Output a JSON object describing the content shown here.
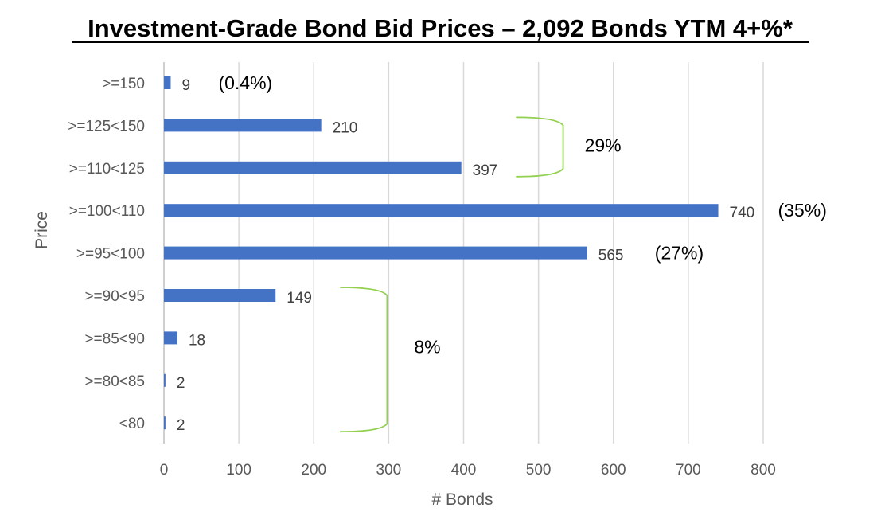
{
  "chart_data": {
    "type": "bar",
    "orientation": "horizontal",
    "title": "Investment-Grade Bond Bid Prices – 2,092 Bonds YTM 4+%*",
    "xlabel": "# Bonds",
    "ylabel": "Price",
    "xlim": [
      0,
      800
    ],
    "xticks": [
      "0",
      "100",
      "200",
      "300",
      "400",
      "500",
      "600",
      "700",
      "800"
    ],
    "categories": [
      ">=150",
      ">=125<150",
      ">=110<125",
      ">=100<110",
      ">=95<100",
      ">=90<95",
      ">=85<90",
      ">=80<85",
      "<80"
    ],
    "values": [
      9,
      210,
      397,
      740,
      565,
      149,
      18,
      2,
      2
    ],
    "value_labels": [
      "9",
      "210",
      "397",
      "740",
      "565",
      "149",
      "18",
      "2",
      "2"
    ],
    "grid": "vertical",
    "bar_color": "#4472c4",
    "annotations": [
      {
        "text": "(0.4%)",
        "category": ">=150"
      },
      {
        "text": "(35%)",
        "category": ">=100<110"
      },
      {
        "text": "(27%)",
        "category": ">=95<100"
      },
      {
        "text": "29%",
        "bracket": [
          ">=125<150",
          ">=110<125"
        ]
      },
      {
        "text": "8%",
        "bracket": [
          ">=90<95",
          "<80"
        ]
      }
    ],
    "bracket_color": "#92d050"
  }
}
